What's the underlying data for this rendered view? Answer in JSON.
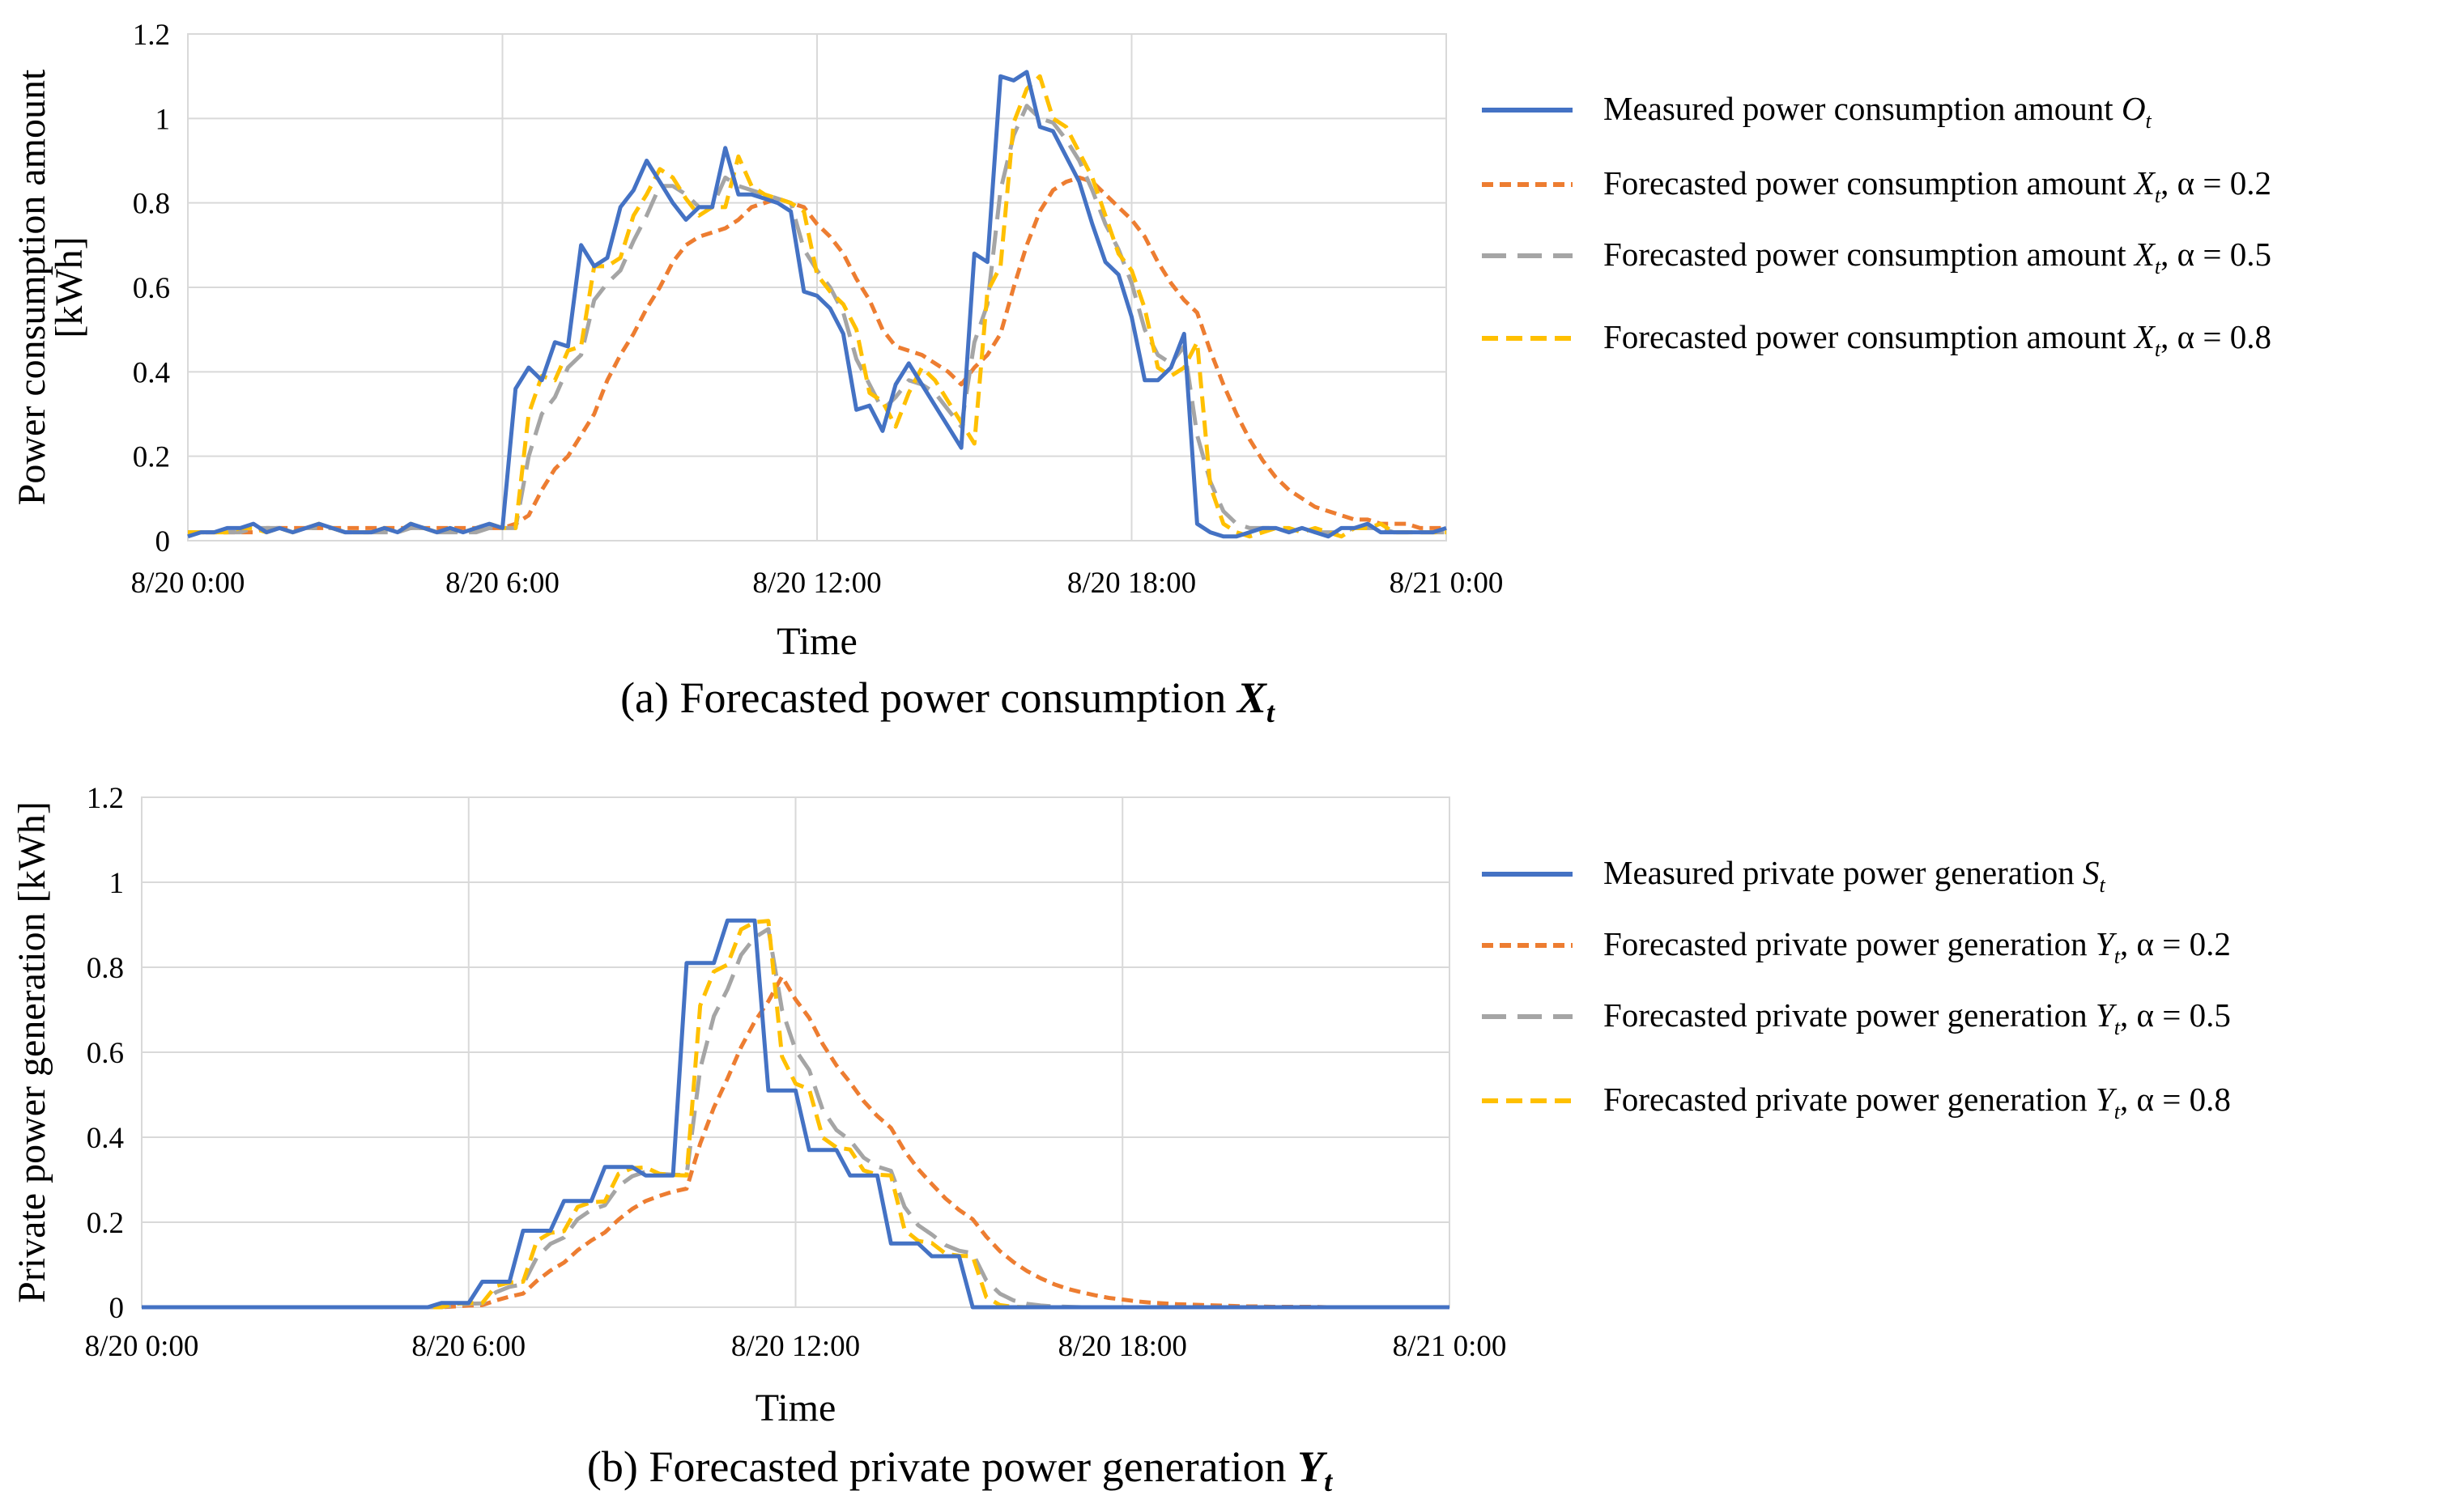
{
  "colors": {
    "measured": "#4472C4",
    "alpha02": "#ED7D31",
    "alpha05": "#A5A5A5",
    "alpha08": "#FFC000",
    "grid": "#D9D9D9"
  },
  "chart_data": [
    {
      "type": "line",
      "caption": "(a) Forecasted power consumption",
      "caption_var": "X",
      "caption_sub": "t",
      "xlabel": "Time",
      "ylabel_lines": [
        "Power consumption amount",
        "[kWh]"
      ],
      "xtick_labels": [
        "8/20 0:00",
        "8/20 6:00",
        "8/20 12:00",
        "8/20 18:00",
        "8/21 0:00"
      ],
      "xlim": [
        0,
        24
      ],
      "ylim": [
        0,
        1.2
      ],
      "yticks": [
        "0",
        "0.2",
        "0.4",
        "0.6",
        "0.8",
        "1",
        "1.2"
      ],
      "grid": true,
      "legend_position": "right",
      "x": [
        0.0,
        0.25,
        0.5,
        0.75,
        1.0,
        1.25,
        1.5,
        1.75,
        2.0,
        2.25,
        2.5,
        2.75,
        3.0,
        3.25,
        3.5,
        3.75,
        4.0,
        4.25,
        4.5,
        4.75,
        5.0,
        5.25,
        5.5,
        5.75,
        6.0,
        6.25,
        6.5,
        6.75,
        7.0,
        7.25,
        7.5,
        7.75,
        8.0,
        8.25,
        8.5,
        8.75,
        9.0,
        9.25,
        9.5,
        9.75,
        10.0,
        10.25,
        10.5,
        10.75,
        11.0,
        11.25,
        11.5,
        11.75,
        12.0,
        12.25,
        12.5,
        12.75,
        13.0,
        13.25,
        13.5,
        13.75,
        14.0,
        14.25,
        14.5,
        14.75,
        15.0,
        15.25,
        15.5,
        15.75,
        16.0,
        16.25,
        16.5,
        16.75,
        17.0,
        17.25,
        17.5,
        17.75,
        18.0,
        18.25,
        18.5,
        18.75,
        19.0,
        19.25,
        19.5,
        19.75,
        20.0,
        20.25,
        20.5,
        20.75,
        21.0,
        21.25,
        21.5,
        21.75,
        22.0,
        22.25,
        22.5,
        22.75,
        23.0,
        23.25,
        23.5,
        23.75,
        24.0
      ],
      "series": [
        {
          "name": "Measured power consumption amount",
          "name_var": "O",
          "name_sub": "t",
          "name_suffix": "",
          "style": "solid",
          "color_key": "measured",
          "values": [
            0.01,
            0.02,
            0.02,
            0.03,
            0.03,
            0.04,
            0.02,
            0.03,
            0.02,
            0.03,
            0.04,
            0.03,
            0.02,
            0.02,
            0.02,
            0.03,
            0.02,
            0.04,
            0.03,
            0.02,
            0.03,
            0.02,
            0.03,
            0.04,
            0.03,
            0.36,
            0.41,
            0.38,
            0.47,
            0.46,
            0.7,
            0.65,
            0.67,
            0.79,
            0.83,
            0.9,
            0.85,
            0.8,
            0.76,
            0.79,
            0.79,
            0.93,
            0.82,
            0.82,
            0.81,
            0.8,
            0.78,
            0.59,
            0.58,
            0.55,
            0.49,
            0.31,
            0.32,
            0.26,
            0.37,
            0.42,
            0.37,
            0.32,
            0.27,
            0.22,
            0.68,
            0.66,
            1.1,
            1.09,
            1.11,
            0.98,
            0.97,
            0.91,
            0.85,
            0.75,
            0.66,
            0.63,
            0.53,
            0.38,
            0.38,
            0.41,
            0.49,
            0.04,
            0.02,
            0.01,
            0.01,
            0.02,
            0.03,
            0.03,
            0.02,
            0.03,
            0.02,
            0.01,
            0.03,
            0.03,
            0.04,
            0.02,
            0.02,
            0.02,
            0.02,
            0.02,
            0.03
          ]
        },
        {
          "name": "Forecasted power consumption amount",
          "name_var": "X",
          "name_sub": "t",
          "name_suffix": ", α = 0.2",
          "style": "short-dash",
          "color_key": "alpha02",
          "values": [
            0.02,
            0.02,
            0.02,
            0.02,
            0.02,
            0.02,
            0.03,
            0.03,
            0.03,
            0.03,
            0.03,
            0.03,
            0.03,
            0.03,
            0.03,
            0.03,
            0.03,
            0.03,
            0.03,
            0.03,
            0.03,
            0.03,
            0.03,
            0.03,
            0.03,
            0.04,
            0.06,
            0.12,
            0.17,
            0.2,
            0.25,
            0.3,
            0.38,
            0.44,
            0.49,
            0.55,
            0.6,
            0.66,
            0.7,
            0.72,
            0.73,
            0.74,
            0.76,
            0.79,
            0.8,
            0.81,
            0.8,
            0.79,
            0.75,
            0.72,
            0.68,
            0.62,
            0.57,
            0.5,
            0.46,
            0.45,
            0.44,
            0.42,
            0.4,
            0.37,
            0.41,
            0.44,
            0.49,
            0.6,
            0.7,
            0.78,
            0.83,
            0.85,
            0.86,
            0.85,
            0.82,
            0.79,
            0.76,
            0.72,
            0.66,
            0.61,
            0.57,
            0.54,
            0.45,
            0.37,
            0.3,
            0.24,
            0.19,
            0.15,
            0.12,
            0.1,
            0.08,
            0.07,
            0.06,
            0.05,
            0.05,
            0.04,
            0.04,
            0.04,
            0.03,
            0.03,
            0.03
          ]
        },
        {
          "name": "Forecasted power consumption amount",
          "name_var": "X",
          "name_sub": "t",
          "name_suffix": ", α = 0.5",
          "style": "long-dash",
          "color_key": "alpha05",
          "values": [
            0.02,
            0.02,
            0.02,
            0.02,
            0.02,
            0.03,
            0.03,
            0.03,
            0.02,
            0.03,
            0.03,
            0.03,
            0.02,
            0.02,
            0.02,
            0.02,
            0.02,
            0.03,
            0.03,
            0.02,
            0.02,
            0.02,
            0.02,
            0.03,
            0.03,
            0.03,
            0.2,
            0.3,
            0.34,
            0.41,
            0.44,
            0.57,
            0.61,
            0.64,
            0.71,
            0.77,
            0.84,
            0.84,
            0.82,
            0.79,
            0.79,
            0.86,
            0.84,
            0.83,
            0.82,
            0.81,
            0.8,
            0.69,
            0.64,
            0.6,
            0.54,
            0.43,
            0.37,
            0.31,
            0.34,
            0.38,
            0.37,
            0.35,
            0.31,
            0.27,
            0.47,
            0.56,
            0.83,
            0.96,
            1.03,
            1.0,
            0.99,
            0.95,
            0.9,
            0.83,
            0.75,
            0.69,
            0.61,
            0.5,
            0.44,
            0.42,
            0.46,
            0.25,
            0.14,
            0.07,
            0.04,
            0.03,
            0.03,
            0.03,
            0.02,
            0.03,
            0.02,
            0.02,
            0.02,
            0.03,
            0.03,
            0.03,
            0.02,
            0.02,
            0.02,
            0.02,
            0.02
          ]
        },
        {
          "name": "Forecasted power consumption amount",
          "name_var": "X",
          "name_sub": "t",
          "name_suffix": ", α = 0.8",
          "style": "dash",
          "color_key": "alpha08",
          "values": [
            0.02,
            0.02,
            0.02,
            0.02,
            0.03,
            0.03,
            0.02,
            0.03,
            0.02,
            0.03,
            0.04,
            0.03,
            0.02,
            0.02,
            0.02,
            0.03,
            0.02,
            0.04,
            0.03,
            0.02,
            0.03,
            0.02,
            0.03,
            0.04,
            0.03,
            0.03,
            0.3,
            0.39,
            0.38,
            0.45,
            0.46,
            0.65,
            0.65,
            0.67,
            0.77,
            0.82,
            0.88,
            0.86,
            0.81,
            0.77,
            0.79,
            0.79,
            0.91,
            0.84,
            0.82,
            0.81,
            0.8,
            0.78,
            0.63,
            0.59,
            0.56,
            0.5,
            0.35,
            0.33,
            0.27,
            0.35,
            0.41,
            0.38,
            0.33,
            0.28,
            0.23,
            0.59,
            0.65,
            0.99,
            1.07,
            1.1,
            1.0,
            0.98,
            0.92,
            0.86,
            0.77,
            0.68,
            0.64,
            0.55,
            0.41,
            0.39,
            0.41,
            0.47,
            0.13,
            0.04,
            0.02,
            0.01,
            0.02,
            0.03,
            0.03,
            0.02,
            0.03,
            0.02,
            0.01,
            0.03,
            0.03,
            0.04,
            0.02,
            0.02,
            0.02,
            0.02,
            0.02
          ]
        }
      ]
    },
    {
      "type": "line",
      "caption": "(b) Forecasted private power generation",
      "caption_var": "Y",
      "caption_sub": "t",
      "xlabel": "Time",
      "ylabel_lines": [
        "Private power generation [kWh]"
      ],
      "xtick_labels": [
        "8/20 0:00",
        "8/20 6:00",
        "8/20 12:00",
        "8/20 18:00",
        "8/21 0:00"
      ],
      "xlim": [
        0,
        24
      ],
      "ylim": [
        0,
        1.2
      ],
      "yticks": [
        "0",
        "0.2",
        "0.4",
        "0.6",
        "0.8",
        "1",
        "1.2"
      ],
      "grid": true,
      "legend_position": "right",
      "x": [
        0.0,
        0.25,
        0.5,
        0.75,
        1.0,
        1.25,
        1.5,
        1.75,
        2.0,
        2.25,
        2.5,
        2.75,
        3.0,
        3.25,
        3.5,
        3.75,
        4.0,
        4.25,
        4.5,
        4.75,
        5.0,
        5.25,
        5.5,
        5.75,
        6.0,
        6.25,
        6.5,
        6.75,
        7.0,
        7.25,
        7.5,
        7.75,
        8.0,
        8.25,
        8.5,
        8.75,
        9.0,
        9.25,
        9.5,
        9.75,
        10.0,
        10.25,
        10.5,
        10.75,
        11.0,
        11.25,
        11.5,
        11.75,
        12.0,
        12.25,
        12.5,
        12.75,
        13.0,
        13.25,
        13.5,
        13.75,
        14.0,
        14.25,
        14.5,
        14.75,
        15.0,
        15.25,
        15.5,
        15.75,
        16.0,
        16.25,
        16.5,
        16.75,
        17.0,
        17.25,
        17.5,
        17.75,
        18.0,
        18.25,
        18.5,
        18.75,
        19.0,
        19.25,
        19.5,
        19.75,
        20.0,
        20.25,
        20.5,
        20.75,
        21.0,
        21.25,
        21.5,
        21.75,
        22.0,
        22.25,
        22.5,
        22.75,
        23.0,
        23.25,
        23.5,
        23.75,
        24.0
      ],
      "series": [
        {
          "name": "Measured private power generation",
          "name_var": "S",
          "name_sub": "t",
          "name_suffix": "",
          "style": "solid",
          "color_key": "measured",
          "values": [
            0,
            0,
            0,
            0,
            0,
            0,
            0,
            0,
            0,
            0,
            0,
            0,
            0,
            0,
            0,
            0,
            0,
            0,
            0,
            0,
            0,
            0,
            0.01,
            0.01,
            0.01,
            0.06,
            0.06,
            0.06,
            0.18,
            0.18,
            0.18,
            0.25,
            0.25,
            0.25,
            0.33,
            0.33,
            0.33,
            0.31,
            0.31,
            0.31,
            0.81,
            0.81,
            0.81,
            0.91,
            0.91,
            0.91,
            0.51,
            0.51,
            0.51,
            0.37,
            0.37,
            0.37,
            0.31,
            0.31,
            0.31,
            0.15,
            0.15,
            0.15,
            0.12,
            0.12,
            0.12,
            0,
            0,
            0,
            0,
            0,
            0,
            0,
            0,
            0,
            0,
            0,
            0,
            0,
            0,
            0,
            0,
            0,
            0,
            0,
            0,
            0,
            0,
            0,
            0,
            0,
            0,
            0,
            0,
            0,
            0,
            0,
            0,
            0,
            0,
            0,
            0
          ]
        },
        {
          "name": "Forecasted private power generation",
          "name_var": "Y",
          "name_sub": "t",
          "name_suffix": ", α = 0.2",
          "style": "short-dash",
          "color_key": "alpha02",
          "values": [
            0,
            0,
            0,
            0,
            0,
            0,
            0,
            0,
            0,
            0,
            0,
            0,
            0,
            0,
            0,
            0,
            0,
            0,
            0,
            0,
            0,
            0,
            0,
            0.002,
            0.004,
            0.005,
            0.016,
            0.025,
            0.032,
            0.062,
            0.086,
            0.105,
            0.134,
            0.157,
            0.176,
            0.206,
            0.231,
            0.25,
            0.262,
            0.272,
            0.279,
            0.385,
            0.47,
            0.538,
            0.612,
            0.672,
            0.72,
            0.778,
            0.724,
            0.681,
            0.619,
            0.569,
            0.529,
            0.485,
            0.45,
            0.422,
            0.368,
            0.325,
            0.29,
            0.256,
            0.229,
            0.207,
            0.166,
            0.132,
            0.106,
            0.085,
            0.068,
            0.054,
            0.043,
            0.035,
            0.028,
            0.022,
            0.018,
            0.014,
            0.011,
            0.009,
            0.007,
            0.006,
            0.005,
            0.004,
            0.003,
            0.002,
            0.002,
            0.001,
            0.001,
            0.001,
            0.001,
            0,
            0,
            0,
            0,
            0,
            0,
            0,
            0,
            0,
            0
          ]
        },
        {
          "name": "Forecasted private power generation",
          "name_var": "Y",
          "name_sub": "t",
          "name_suffix": ", α = 0.5",
          "style": "long-dash",
          "color_key": "alpha05",
          "values": [
            0,
            0,
            0,
            0,
            0,
            0,
            0,
            0,
            0,
            0,
            0,
            0,
            0,
            0,
            0,
            0,
            0,
            0,
            0,
            0,
            0,
            0,
            0,
            0.005,
            0.008,
            0.009,
            0.035,
            0.048,
            0.054,
            0.117,
            0.149,
            0.164,
            0.207,
            0.229,
            0.24,
            0.285,
            0.308,
            0.319,
            0.314,
            0.312,
            0.311,
            0.561,
            0.685,
            0.748,
            0.829,
            0.87,
            0.89,
            0.7,
            0.605,
            0.558,
            0.464,
            0.417,
            0.393,
            0.352,
            0.331,
            0.321,
            0.236,
            0.193,
            0.171,
            0.146,
            0.133,
            0.127,
            0.063,
            0.032,
            0.016,
            0.008,
            0.004,
            0.002,
            0.001,
            0,
            0,
            0,
            0,
            0,
            0,
            0,
            0,
            0,
            0,
            0,
            0,
            0,
            0,
            0,
            0,
            0,
            0,
            0,
            0,
            0,
            0,
            0,
            0,
            0,
            0,
            0,
            0
          ]
        },
        {
          "name": "Forecasted private power generation",
          "name_var": "Y",
          "name_sub": "t",
          "name_suffix": ", α = 0.8",
          "style": "dash",
          "color_key": "alpha08",
          "values": [
            0,
            0,
            0,
            0,
            0,
            0,
            0,
            0,
            0,
            0,
            0,
            0,
            0,
            0,
            0,
            0,
            0,
            0,
            0,
            0,
            0,
            0,
            0,
            0.008,
            0.01,
            0.01,
            0.05,
            0.058,
            0.06,
            0.156,
            0.175,
            0.179,
            0.236,
            0.247,
            0.249,
            0.314,
            0.327,
            0.329,
            0.314,
            0.311,
            0.31,
            0.71,
            0.79,
            0.806,
            0.889,
            0.906,
            0.909,
            0.59,
            0.526,
            0.513,
            0.399,
            0.376,
            0.371,
            0.322,
            0.312,
            0.31,
            0.182,
            0.156,
            0.151,
            0.126,
            0.121,
            0.12,
            0.024,
            0.005,
            0.001,
            0,
            0,
            0,
            0,
            0,
            0,
            0,
            0,
            0,
            0,
            0,
            0,
            0,
            0,
            0,
            0,
            0,
            0,
            0,
            0,
            0,
            0,
            0,
            0,
            0,
            0,
            0,
            0,
            0,
            0,
            0,
            0
          ]
        }
      ]
    }
  ]
}
